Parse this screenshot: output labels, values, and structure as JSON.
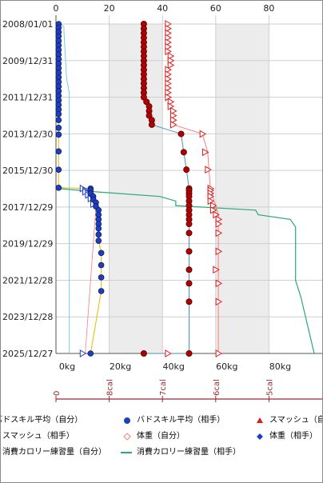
{
  "colors": {
    "bads_self": "#1f3fbf",
    "bads_opp": "#e11a1a",
    "smash_self": "#e11a1a",
    "smash_opp": "#f08080",
    "weight_self": "#8a0a0a",
    "weight_opp": "#1f3fbf",
    "cal_self": "#7ec8e3",
    "cal_opp": "#2aa876",
    "band": "#ececec",
    "grid": "#cfcfcf",
    "cal_axis": "#a0282d"
  },
  "chart_data": {
    "type": "scatter",
    "y_axis": {
      "ticks": [
        "2008/01/01",
        "2009/12/31",
        "2011/12/31",
        "2013/12/30",
        "2015/12/30",
        "2017/12/29",
        "2019/12/29",
        "2021/12/28",
        "2023/12/28",
        "2025/12/27"
      ],
      "range": [
        "2008/01/01",
        "2025/12/27"
      ]
    },
    "top_axis": {
      "range": [
        0,
        100
      ],
      "ticks": [
        "0",
        "20",
        "40",
        "60",
        "80"
      ]
    },
    "bottom_axis": {
      "range": [
        0,
        100
      ],
      "ticks": [
        "0kg",
        "20kg",
        "40kg",
        "60kg",
        "80kg"
      ]
    },
    "cal_axis": {
      "ticks": [
        "0",
        "8cal",
        "7cal",
        "6cal",
        "5cal"
      ]
    },
    "series": [
      {
        "name": "バドスキル平均（自分）",
        "marker": "circle-self",
        "points": [
          [
            "2008/01/01",
            1
          ],
          [
            "2008/03/15",
            1
          ],
          [
            "2008/06/10",
            1
          ],
          [
            "2008/09/01",
            1
          ],
          [
            "2008/12/01",
            1
          ],
          [
            "2009/03/01",
            1
          ],
          [
            "2009/06/01",
            1
          ],
          [
            "2009/09/01",
            1
          ],
          [
            "2009/12/01",
            1
          ],
          [
            "2010/03/01",
            1
          ],
          [
            "2010/06/01",
            1
          ],
          [
            "2010/09/01",
            1
          ],
          [
            "2010/12/01",
            1
          ],
          [
            "2011/03/01",
            1
          ],
          [
            "2011/06/01",
            1
          ],
          [
            "2011/09/01",
            1
          ],
          [
            "2011/12/01",
            1
          ],
          [
            "2012/03/01",
            1
          ],
          [
            "2012/06/01",
            1
          ],
          [
            "2012/09/01",
            1
          ],
          [
            "2012/12/01",
            1
          ],
          [
            "2013/04/01",
            1
          ],
          [
            "2013/09/01",
            1
          ],
          [
            "2014/01/15",
            1
          ],
          [
            "2014/12/15",
            1
          ],
          [
            "2015/12/15",
            1
          ],
          [
            "2016/12/10",
            1
          ],
          [
            "2016/12/25",
            13
          ],
          [
            "2017/02/01",
            13
          ],
          [
            "2017/04/01",
            13
          ],
          [
            "2017/06/01",
            14
          ],
          [
            "2017/08/01",
            14
          ],
          [
            "2017/10/01",
            15
          ],
          [
            "2017/12/15",
            15
          ],
          [
            "2018/03/01",
            16
          ],
          [
            "2018/06/01",
            16
          ],
          [
            "2018/09/01",
            16
          ],
          [
            "2018/12/01",
            16
          ],
          [
            "2019/03/01",
            16
          ],
          [
            "2019/07/01",
            16
          ],
          [
            "2019/11/01",
            16
          ],
          [
            "2020/07/01",
            17
          ],
          [
            "2021/03/01",
            17
          ],
          [
            "2021/11/01",
            17
          ],
          [
            "2022/08/01",
            17
          ],
          [
            "2025/12/27",
            13
          ]
        ]
      },
      {
        "name": "バドスキル平均（相手）",
        "marker": "circle-opp",
        "points": [
          [
            "2008/01/01",
            33
          ],
          [
            "2008/04/01",
            33
          ],
          [
            "2008/07/01",
            33
          ],
          [
            "2008/10/01",
            33
          ],
          [
            "2009/01/01",
            33
          ],
          [
            "2009/04/01",
            33
          ],
          [
            "2009/07/01",
            33
          ],
          [
            "2009/10/01",
            33
          ],
          [
            "2010/01/01",
            33
          ],
          [
            "2010/04/01",
            33
          ],
          [
            "2010/07/01",
            33
          ],
          [
            "2010/10/01",
            33
          ],
          [
            "2011/01/01",
            33
          ],
          [
            "2011/04/01",
            33
          ],
          [
            "2011/07/01",
            33
          ],
          [
            "2011/10/01",
            33
          ],
          [
            "2012/01/01",
            33
          ],
          [
            "2012/04/01",
            34
          ],
          [
            "2012/07/01",
            35
          ],
          [
            "2012/10/01",
            35
          ],
          [
            "2013/01/01",
            35
          ],
          [
            "2013/04/01",
            36
          ],
          [
            "2013/07/01",
            36
          ],
          [
            "2014/01/01",
            47
          ],
          [
            "2015/01/01",
            48
          ],
          [
            "2015/12/15",
            49
          ],
          [
            "2016/12/25",
            50
          ],
          [
            "2017/02/01",
            50
          ],
          [
            "2017/04/01",
            50
          ],
          [
            "2017/06/01",
            50
          ],
          [
            "2017/09/01",
            50
          ],
          [
            "2017/12/01",
            50
          ],
          [
            "2018/03/01",
            50
          ],
          [
            "2018/06/01",
            50
          ],
          [
            "2018/09/01",
            50
          ],
          [
            "2018/12/01",
            50
          ],
          [
            "2019/06/01",
            50
          ],
          [
            "2020/06/01",
            50
          ],
          [
            "2021/06/01",
            50
          ],
          [
            "2022/03/01",
            50
          ],
          [
            "2023/03/01",
            50
          ],
          [
            "2025/12/27",
            50
          ],
          [
            "2025/12/27",
            33
          ]
        ]
      },
      {
        "name": "スマッシュ（自分）",
        "marker": "triangle-self",
        "points": [
          [
            "2008/01/01",
            42
          ],
          [
            "2008/04/01",
            42
          ],
          [
            "2008/07/01",
            42
          ],
          [
            "2008/10/01",
            42
          ],
          [
            "2009/01/01",
            42
          ],
          [
            "2009/04/01",
            42
          ],
          [
            "2009/07/01",
            42
          ],
          [
            "2009/10/01",
            43
          ],
          [
            "2010/01/01",
            43
          ],
          [
            "2010/04/01",
            43
          ],
          [
            "2010/07/01",
            42
          ],
          [
            "2010/10/01",
            42
          ],
          [
            "2011/01/01",
            42
          ],
          [
            "2011/04/01",
            42
          ],
          [
            "2011/07/01",
            42
          ],
          [
            "2011/10/01",
            42
          ],
          [
            "2012/01/01",
            42
          ],
          [
            "2012/04/01",
            43
          ],
          [
            "2012/07/01",
            43
          ],
          [
            "2012/10/01",
            44
          ],
          [
            "2013/01/01",
            44
          ],
          [
            "2013/04/01",
            44
          ],
          [
            "2013/07/01",
            44
          ],
          [
            "2014/01/01",
            55
          ],
          [
            "2015/01/01",
            56
          ],
          [
            "2015/12/15",
            57
          ],
          [
            "2016/12/25",
            58
          ],
          [
            "2017/02/01",
            58
          ],
          [
            "2017/04/01",
            58
          ],
          [
            "2017/06/01",
            58
          ],
          [
            "2017/09/01",
            58
          ],
          [
            "2017/12/01",
            59
          ],
          [
            "2018/03/01",
            59
          ],
          [
            "2018/06/01",
            60
          ],
          [
            "2018/09/01",
            61
          ],
          [
            "2018/12/01",
            61
          ],
          [
            "2019/06/01",
            61
          ],
          [
            "2020/06/01",
            61
          ],
          [
            "2021/06/01",
            60
          ],
          [
            "2022/03/01",
            61
          ],
          [
            "2023/03/01",
            61
          ],
          [
            "2025/12/27",
            61
          ],
          [
            "2025/12/27",
            42
          ]
        ]
      },
      {
        "name": "スマッシュ（相手）",
        "marker": "line-only",
        "points": [
          [
            "2013/07/01",
            44
          ],
          [
            "2014/01/01",
            55
          ],
          [
            "2015/01/01",
            57
          ],
          [
            "2016/12/25",
            58
          ],
          [
            "2018/06/01",
            61
          ],
          [
            "2021/06/01",
            61
          ],
          [
            "2025/12/27",
            61
          ]
        ]
      },
      {
        "name": "体重（自分）",
        "marker": "diamond-open",
        "points": [
          [
            "2016/12/25",
            11
          ],
          [
            "2017/02/01",
            12
          ],
          [
            "2017/03/01",
            12
          ],
          [
            "2017/04/01",
            12
          ],
          [
            "2017/05/01",
            13
          ],
          [
            "2017/06/01",
            13
          ],
          [
            "2017/07/15",
            14
          ],
          [
            "2017/09/01",
            14
          ],
          [
            "2017/11/01",
            15
          ],
          [
            "2018/01/15",
            15
          ],
          [
            "2025/12/27",
            11
          ]
        ]
      },
      {
        "name": "体重（相手）",
        "marker": "diamond-self",
        "points": [
          [
            "2016/12/25",
            10
          ],
          [
            "2017/02/01",
            11
          ],
          [
            "2017/03/01",
            11
          ],
          [
            "2017/04/01",
            12
          ],
          [
            "2017/05/01",
            12
          ],
          [
            "2017/06/01",
            13
          ],
          [
            "2017/07/15",
            13
          ],
          [
            "2017/09/01",
            14
          ],
          [
            "2017/11/01",
            14
          ],
          [
            "2025/12/27",
            10
          ]
        ]
      },
      {
        "name": "消費カロリー練習量（自分）",
        "marker": "line",
        "points": [
          [
            "2008/01/01",
            2
          ],
          [
            "2008/03/01",
            3
          ],
          [
            "2008/06/01",
            3
          ],
          [
            "2011/01/01",
            4
          ],
          [
            "2011/10/01",
            5
          ],
          [
            "2012/01/01",
            5
          ],
          [
            "2025/12/27",
            5
          ]
        ]
      },
      {
        "name": "消費カロリー練習量（相手）",
        "marker": "line",
        "points": [
          [
            "2016/12/25",
            1
          ],
          [
            "2017/03/01",
            15
          ],
          [
            "2017/06/01",
            39
          ],
          [
            "2017/09/01",
            45
          ],
          [
            "2017/12/01",
            45
          ],
          [
            "2018/03/01",
            75
          ],
          [
            "2018/06/01",
            76
          ],
          [
            "2018/09/01",
            88
          ],
          [
            "2019/02/01",
            90
          ],
          [
            "2019/09/01",
            90
          ],
          [
            "2022/01/01",
            90
          ],
          [
            "2022/12/01",
            92
          ],
          [
            "2025/12/27",
            97
          ]
        ]
      }
    ]
  },
  "legend": [
    {
      "label": "バドスキル平均（自分）"
    },
    {
      "label": "バドスキル平均（相手）"
    },
    {
      "label": "スマッシュ（自"
    },
    {
      "label": "スマッシュ（相手）"
    },
    {
      "label": "体重（自分）"
    },
    {
      "label": "体重（相手）"
    },
    {
      "label": "消費カロリー練習量（自分）"
    },
    {
      "label": "消費カロリー練習量（相手）"
    }
  ]
}
